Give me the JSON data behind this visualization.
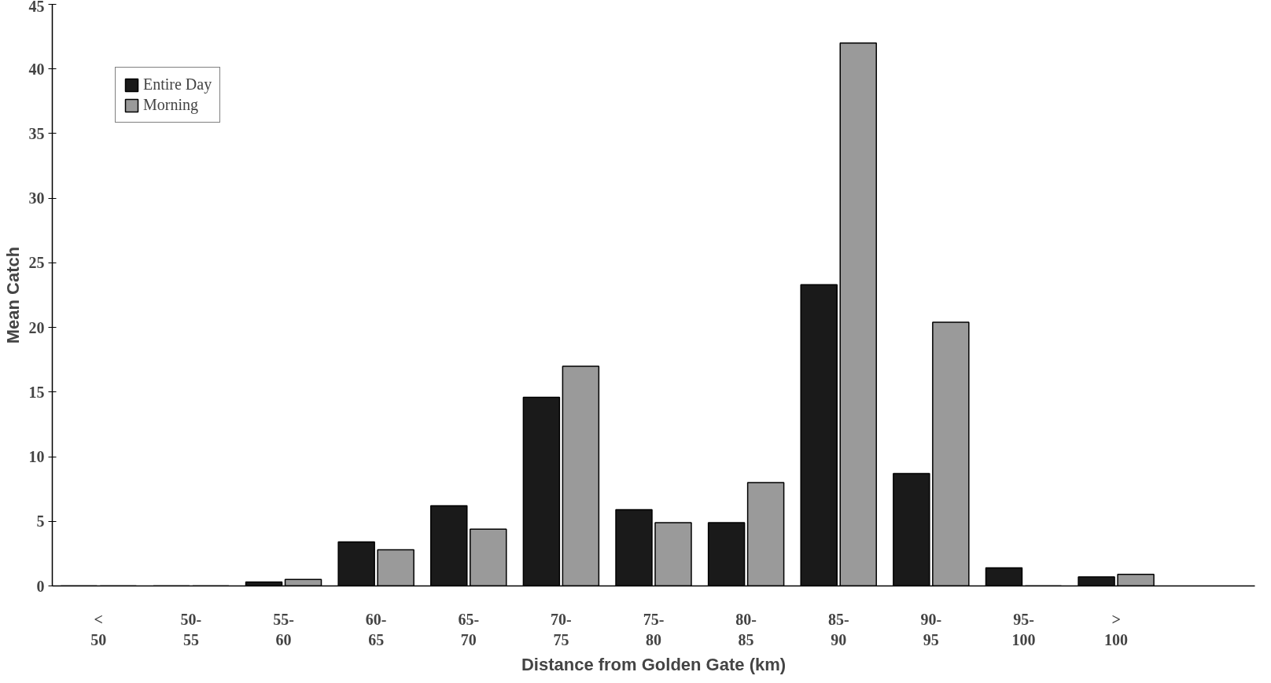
{
  "chart_data": {
    "type": "bar",
    "xlabel": "Distance from Golden Gate (km)",
    "ylabel": "Mean Catch",
    "categories": [
      "<\n50",
      "50-\n55",
      "55-\n60",
      "60-\n65",
      "65-\n70",
      "70-\n75",
      "75-\n80",
      "80-\n85",
      "85-\n90",
      "90-\n95",
      "95-\n100",
      ">\n100",
      null
    ],
    "series": [
      {
        "name": "Entire Day",
        "color": "#1a1a1a",
        "values": [
          0,
          0,
          0.3,
          3.4,
          6.2,
          14.6,
          5.9,
          4.9,
          23.3,
          8.7,
          1.4,
          0.7,
          null
        ]
      },
      {
        "name": "Morning",
        "color": "#9a9a9a",
        "values": [
          0,
          0,
          0.5,
          2.8,
          4.4,
          17.0,
          4.9,
          8.0,
          42.0,
          20.4,
          0,
          0.9,
          null
        ]
      }
    ],
    "ylim": [
      0,
      45
    ],
    "yticks": [
      0,
      5,
      10,
      15,
      20,
      25,
      30,
      35,
      40,
      45
    ],
    "grid": false,
    "legend": "top left"
  }
}
